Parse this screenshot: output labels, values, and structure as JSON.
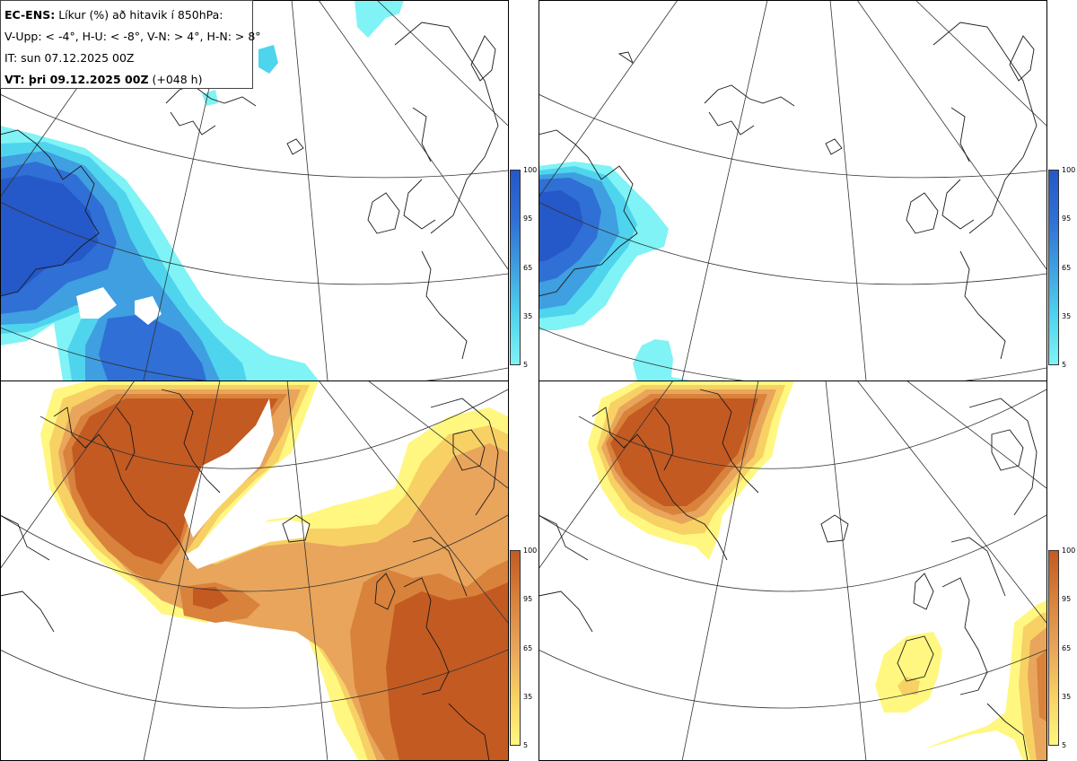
{
  "title": {
    "model": "EC-ENS:",
    "description": "Líkur (%) að hitavik í 850hPa:",
    "categories": "V-Upp: < -4°, H-U: < -8°, V-N: > 4°, H-N: > 8°",
    "initial_time": "IT: sun 07.12.2025 00Z",
    "valid_label": "VT: þri 09.12.2025 00Z",
    "lead": "(+048 h)"
  },
  "panels": [
    {
      "id": "cold-weak",
      "category": "V-Upp",
      "threshold": "< -4°"
    },
    {
      "id": "cold-strong",
      "category": "H-U",
      "threshold": "< -8°"
    },
    {
      "id": "warm-weak",
      "category": "V-N",
      "threshold": "> 4°"
    },
    {
      "id": "warm-strong",
      "category": "H-N",
      "threshold": "> 8°"
    }
  ],
  "colorbar_ticks": [
    "100",
    "95",
    "65",
    "35",
    "5"
  ],
  "colors": {
    "cold": [
      "#7ff3f5",
      "#4fd4ee",
      "#3f9fe0",
      "#2f6fd6",
      "#2558c8"
    ],
    "warm": [
      "#fff780",
      "#f7d163",
      "#e8a55b",
      "#d8823c",
      "#c35a22"
    ],
    "coast": "#1a1a1a",
    "grid": "#333333"
  }
}
